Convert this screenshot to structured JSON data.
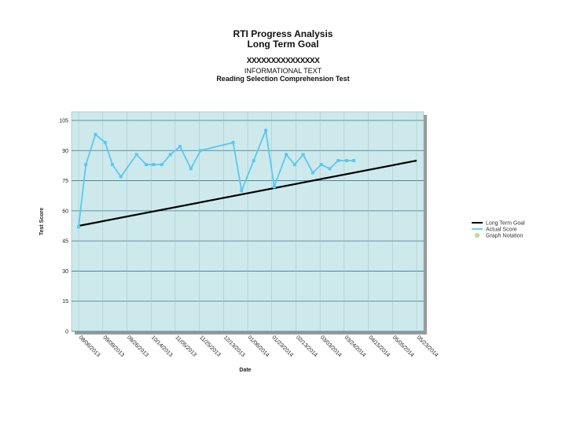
{
  "header": {
    "title": "RTI Progress Analysis",
    "subtitle": "Long Term Goal",
    "student_line": "XXXXXXXXXXXXXXX",
    "category": "INFORMATIONAL TEXT",
    "test_name": "Reading Selection Comprehension Test"
  },
  "legend": {
    "items": [
      {
        "label": "Long Term Goal",
        "color": "#000000"
      },
      {
        "label": "Actual Score",
        "color": "#5bc8ee"
      },
      {
        "label": "Graph Notation",
        "color": "#c8e08a"
      }
    ]
  },
  "chart_data": {
    "type": "line",
    "title": "RTI Progress Analysis",
    "xlabel": "Date",
    "ylabel": "Test Score",
    "ylim": [
      0,
      105
    ],
    "yticks": [
      0,
      15,
      30,
      45,
      60,
      75,
      90,
      105
    ],
    "grid": true,
    "legend_position": "right",
    "x_tick_labels": [
      "08/06/2013",
      "09/09/2013",
      "09/26/2013",
      "10/14/2013",
      "11/05/2013",
      "11/25/2013",
      "12/13/2013",
      "01/06/2014",
      "01/23/2014",
      "02/13/2014",
      "03/03/2014",
      "03/24/2014",
      "04/15/2014",
      "05/05/2014",
      "05/23/2014"
    ],
    "series": [
      {
        "name": "Long Term Goal",
        "color": "#000000",
        "x_index": [
          0,
          14
        ],
        "values": [
          52.5,
          85
        ]
      },
      {
        "name": "Actual Score",
        "color": "#5bc8ee",
        "x_index": [
          0,
          0.3,
          0.7,
          1.1,
          1.4,
          1.75,
          2.4,
          2.8,
          3.1,
          3.45,
          3.8,
          4.2,
          4.65,
          5.05,
          6.4,
          6.75,
          7.25,
          7.75,
          8.1,
          8.6,
          8.95,
          9.3,
          9.7,
          10.05,
          10.4,
          10.75,
          11.1,
          11.4
        ],
        "values": [
          52,
          83,
          98,
          94,
          83,
          77,
          88,
          83,
          83,
          83,
          88,
          92,
          81,
          90,
          94,
          70,
          85,
          100,
          72,
          88,
          83,
          88,
          79,
          83,
          81,
          85,
          85,
          85
        ]
      }
    ]
  }
}
